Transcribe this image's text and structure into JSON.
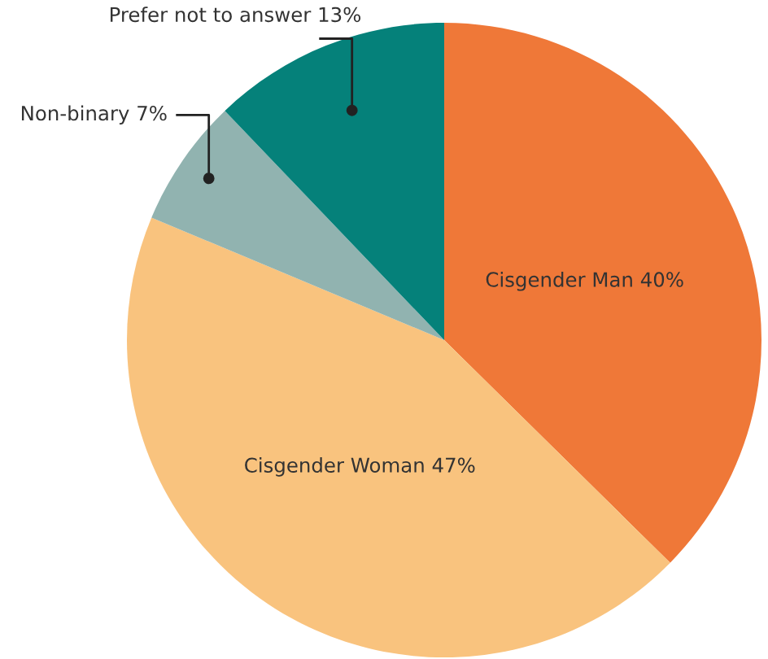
{
  "chart_data": {
    "type": "pie",
    "categories": [
      "Cisgender Man",
      "Cisgender Woman",
      "Non-binary",
      "Prefer not to answer"
    ],
    "values": [
      40,
      47,
      7,
      13
    ],
    "colors": [
      "#ef7838",
      "#f9c37e",
      "#91b3b0",
      "#05817a"
    ],
    "value_labels": [
      "40%",
      "47%",
      "7%",
      "13%"
    ]
  }
}
